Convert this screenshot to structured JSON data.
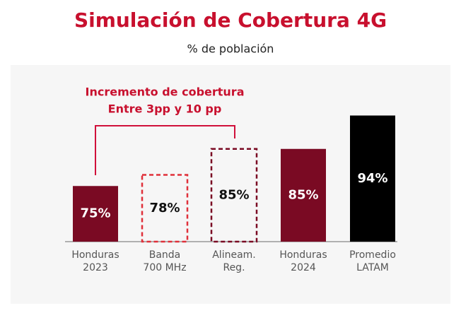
{
  "chart_data": {
    "type": "bar",
    "title": "Simulación de Cobertura 4G",
    "subtitle": "% de población",
    "annotation": [
      "Incremento de cobertura",
      "Entre 3pp y 10 pp"
    ],
    "categories": [
      "Honduras\n2023",
      "Banda\n700 MHz",
      "Alineam.\nReg.",
      "Honduras\n2024",
      "Promedio\nLATAM"
    ],
    "values": [
      75,
      78,
      85,
      85,
      94
    ],
    "value_labels": [
      "75%",
      "78%",
      "85%",
      "85%",
      "94%"
    ],
    "colors": [
      "#7a0a23",
      "#e0303a",
      "#7a0a23",
      "#7a0a23",
      "#000000"
    ],
    "dashed": [
      false,
      true,
      true,
      false,
      false
    ],
    "title_color": "#c8102e",
    "ylim": [
      60,
      100
    ]
  }
}
